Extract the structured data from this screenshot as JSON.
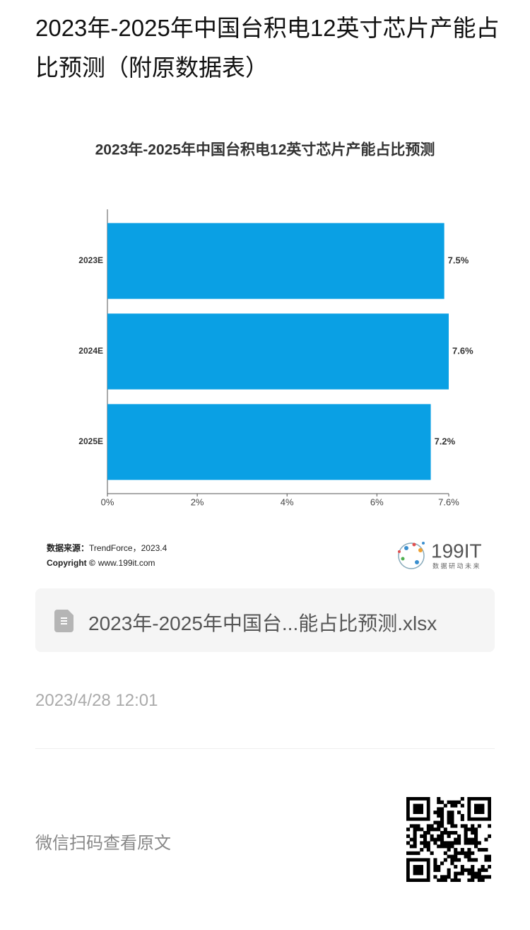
{
  "header": {
    "title": "2023年-2025年中国台积电12英寸芯片产能占比预测（附原数据表）"
  },
  "chart_data": {
    "type": "barh",
    "title": "2023年-2025年中国台积电12英寸芯片产能占比预测",
    "categories": [
      "2023E",
      "2024E",
      "2025E"
    ],
    "values": [
      7.5,
      7.6,
      7.2
    ],
    "value_labels": [
      "7.5%",
      "7.6%",
      "7.2%"
    ],
    "color": "#0aa0e4",
    "xlim": [
      0,
      7.6
    ],
    "xticks": [
      {
        "value": 0,
        "label": "0%"
      },
      {
        "value": 2,
        "label": "2%"
      },
      {
        "value": 4,
        "label": "4%"
      },
      {
        "value": 6,
        "label": "6%"
      },
      {
        "value": 7.6,
        "label": "7.6%"
      }
    ],
    "grid": false
  },
  "source": {
    "label": "数据来源：",
    "text": "TrendForce，2023.4",
    "copyright_label": "Copyright ©",
    "copyright": "www.199it.com"
  },
  "logo": {
    "name": "199IT",
    "slogan": "数 据 研 动 未 来"
  },
  "attachment": {
    "filename": "2023年-2025年中国台...能占比预测.xlsx"
  },
  "date": "2023/4/28 12:01",
  "footer": {
    "text": "微信扫码查看原文"
  }
}
